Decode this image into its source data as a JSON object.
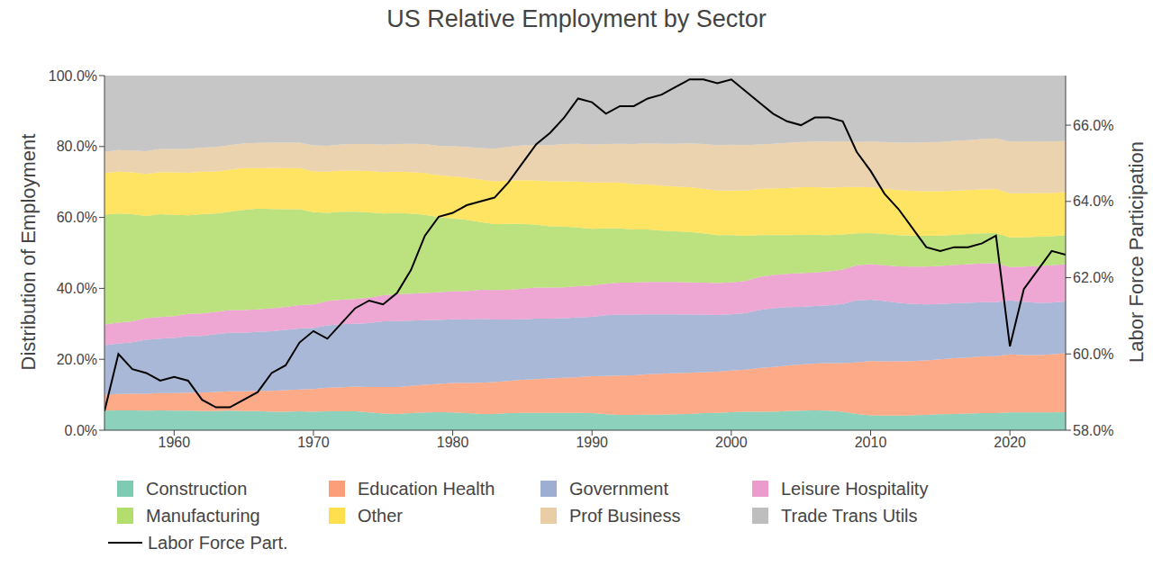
{
  "chart_data": {
    "type": "area",
    "title": "US Relative Employment by Sector",
    "ylabel": "Distribution of Employment",
    "y2label": "Labor Force Participation",
    "stacked": true,
    "grid": false,
    "legend": "bottom",
    "x": [
      1955,
      1956,
      1957,
      1958,
      1959,
      1960,
      1961,
      1962,
      1963,
      1964,
      1965,
      1966,
      1967,
      1968,
      1969,
      1970,
      1971,
      1972,
      1973,
      1974,
      1975,
      1976,
      1977,
      1978,
      1979,
      1980,
      1981,
      1982,
      1983,
      1984,
      1985,
      1986,
      1987,
      1988,
      1989,
      1990,
      1991,
      1992,
      1993,
      1994,
      1995,
      1996,
      1997,
      1998,
      1999,
      2000,
      2001,
      2002,
      2003,
      2004,
      2005,
      2006,
      2007,
      2008,
      2009,
      2010,
      2011,
      2012,
      2013,
      2014,
      2015,
      2016,
      2017,
      2018,
      2019,
      2020,
      2021,
      2022,
      2023,
      2024
    ],
    "xlim": [
      1955,
      2024
    ],
    "xticks": [
      1960,
      1970,
      1980,
      1990,
      2000,
      2010,
      2020
    ],
    "ylim": [
      0,
      100
    ],
    "yticks": [
      {
        "value": 0,
        "label": "0.0%"
      },
      {
        "value": 20,
        "label": "20.0%"
      },
      {
        "value": 40,
        "label": "40.0%"
      },
      {
        "value": 60,
        "label": "60.0%"
      },
      {
        "value": 80,
        "label": "80.0%"
      },
      {
        "value": 100,
        "label": "100.0%"
      }
    ],
    "y2lim": [
      58,
      67.3
    ],
    "y2ticks": [
      {
        "value": 58,
        "label": "58.0%"
      },
      {
        "value": 60,
        "label": "60.0%"
      },
      {
        "value": 62,
        "label": "62.0%"
      },
      {
        "value": 64,
        "label": "64.0%"
      },
      {
        "value": 66,
        "label": "66.0%"
      }
    ],
    "series": [
      {
        "name": "Construction",
        "color": "#66c2a5",
        "values": [
          5.5,
          5.6,
          5.6,
          5.5,
          5.6,
          5.5,
          5.5,
          5.4,
          5.4,
          5.5,
          5.4,
          5.4,
          5.2,
          5.2,
          5.3,
          5.2,
          5.3,
          5.3,
          5.3,
          5.0,
          4.7,
          4.6,
          4.8,
          5.0,
          5.1,
          5.0,
          4.8,
          4.6,
          4.6,
          4.8,
          4.9,
          4.9,
          4.9,
          4.9,
          4.9,
          4.8,
          4.5,
          4.3,
          4.3,
          4.4,
          4.4,
          4.5,
          4.6,
          4.8,
          4.9,
          5.1,
          5.2,
          5.2,
          5.2,
          5.4,
          5.5,
          5.6,
          5.5,
          5.2,
          4.6,
          4.2,
          4.1,
          4.1,
          4.2,
          4.3,
          4.5,
          4.6,
          4.7,
          4.8,
          4.8,
          5.0,
          5.0,
          5.0,
          5.0,
          5.1
        ]
      },
      {
        "name": "Education Health",
        "color": "#fc8d62",
        "values": [
          4.5,
          4.6,
          4.7,
          4.8,
          4.9,
          5.0,
          5.1,
          5.2,
          5.4,
          5.5,
          5.6,
          5.7,
          5.9,
          6.1,
          6.2,
          6.4,
          6.7,
          6.8,
          7.0,
          7.2,
          7.5,
          7.6,
          7.7,
          7.8,
          8.0,
          8.3,
          8.5,
          8.8,
          9.0,
          9.1,
          9.3,
          9.5,
          9.7,
          9.9,
          10.1,
          10.4,
          10.8,
          11.1,
          11.2,
          11.4,
          11.5,
          11.6,
          11.6,
          11.6,
          11.6,
          11.7,
          11.9,
          12.3,
          12.6,
          12.8,
          13.0,
          13.2,
          13.4,
          13.7,
          14.5,
          15.3,
          15.3,
          15.3,
          15.3,
          15.4,
          15.5,
          15.7,
          15.8,
          16.0,
          16.1,
          16.4,
          16.2,
          16.2,
          16.4,
          16.6
        ]
      },
      {
        "name": "Government",
        "color": "#8da0cb",
        "values": [
          14.0,
          14.2,
          14.5,
          15.2,
          15.3,
          15.5,
          15.9,
          16.0,
          16.3,
          16.5,
          16.5,
          16.6,
          16.8,
          17.0,
          17.2,
          17.2,
          17.6,
          17.8,
          17.7,
          18.0,
          18.5,
          18.6,
          18.4,
          18.2,
          18.0,
          18.0,
          17.9,
          18.0,
          17.6,
          17.3,
          17.1,
          17.1,
          16.9,
          16.8,
          16.8,
          16.8,
          17.1,
          17.2,
          17.1,
          16.9,
          16.8,
          16.6,
          16.4,
          16.2,
          16.0,
          15.9,
          15.9,
          16.4,
          16.6,
          16.5,
          16.3,
          16.2,
          16.3,
          16.7,
          17.5,
          17.3,
          17.0,
          16.5,
          16.1,
          15.8,
          15.6,
          15.5,
          15.4,
          15.3,
          15.2,
          15.2,
          15.0,
          14.7,
          14.6,
          14.6
        ]
      },
      {
        "name": "Leisure Hospitality",
        "color": "#e78ac3",
        "values": [
          5.8,
          5.9,
          5.9,
          6.1,
          6.1,
          6.2,
          6.3,
          6.3,
          6.3,
          6.4,
          6.4,
          6.4,
          6.5,
          6.5,
          6.6,
          6.7,
          6.8,
          6.9,
          7.0,
          7.2,
          7.4,
          7.5,
          7.6,
          7.7,
          7.8,
          7.9,
          8.0,
          8.2,
          8.3,
          8.4,
          8.6,
          8.7,
          8.7,
          8.7,
          8.8,
          8.8,
          8.9,
          9.0,
          9.0,
          9.1,
          9.1,
          9.1,
          9.1,
          9.0,
          9.0,
          9.0,
          9.1,
          9.3,
          9.4,
          9.4,
          9.5,
          9.5,
          9.6,
          9.7,
          9.9,
          10.0,
          10.1,
          10.3,
          10.5,
          10.6,
          10.7,
          10.8,
          10.9,
          10.9,
          11.0,
          9.4,
          9.9,
          10.4,
          10.5,
          10.5
        ]
      },
      {
        "name": "Manufacturing",
        "color": "#a6d854",
        "values": [
          31.0,
          30.8,
          30.2,
          28.8,
          29.0,
          28.5,
          27.8,
          28.0,
          27.7,
          27.7,
          28.2,
          28.4,
          28.0,
          27.5,
          27.0,
          26.0,
          24.9,
          24.8,
          24.6,
          24.0,
          23.0,
          22.9,
          22.6,
          22.0,
          21.2,
          20.5,
          20.1,
          19.1,
          18.6,
          18.6,
          18.3,
          17.7,
          17.3,
          17.1,
          16.6,
          16.0,
          15.6,
          15.3,
          15.0,
          14.8,
          14.5,
          14.3,
          14.2,
          13.9,
          13.5,
          13.3,
          12.7,
          11.8,
          11.2,
          10.9,
          10.8,
          10.6,
          10.2,
          9.9,
          9.0,
          8.8,
          8.8,
          8.8,
          8.8,
          8.7,
          8.6,
          8.5,
          8.5,
          8.5,
          8.5,
          8.4,
          8.3,
          8.3,
          8.2,
          8.2
        ]
      },
      {
        "name": "Other",
        "color": "#ffd92f",
        "values": [
          11.7,
          11.8,
          11.8,
          11.9,
          11.9,
          12.0,
          12.0,
          12.0,
          11.9,
          11.9,
          11.8,
          11.4,
          11.6,
          11.6,
          11.6,
          11.5,
          11.6,
          11.6,
          11.6,
          11.7,
          11.7,
          11.7,
          11.7,
          11.8,
          11.8,
          11.9,
          11.9,
          12.0,
          12.1,
          12.2,
          12.3,
          12.5,
          12.7,
          12.8,
          12.9,
          13.0,
          13.0,
          12.9,
          12.8,
          12.7,
          12.7,
          12.6,
          12.6,
          12.6,
          12.6,
          12.6,
          12.8,
          13.0,
          13.2,
          13.3,
          13.4,
          13.4,
          13.4,
          13.3,
          13.1,
          12.9,
          12.8,
          12.7,
          12.6,
          12.6,
          12.5,
          12.5,
          12.4,
          12.4,
          12.4,
          12.4,
          12.4,
          12.3,
          12.2,
          12.2
        ]
      },
      {
        "name": "Prof Business",
        "color": "#e5c494",
        "values": [
          6.0,
          6.1,
          6.2,
          6.4,
          6.5,
          6.6,
          6.7,
          6.8,
          6.9,
          6.9,
          7.0,
          7.1,
          7.1,
          7.2,
          7.2,
          7.3,
          7.3,
          7.4,
          7.5,
          7.6,
          7.7,
          7.8,
          8.0,
          8.2,
          8.3,
          8.5,
          8.7,
          8.9,
          9.2,
          9.5,
          9.8,
          10.0,
          10.2,
          10.5,
          10.7,
          10.8,
          10.8,
          11.0,
          11.3,
          11.6,
          11.8,
          12.1,
          12.4,
          12.6,
          12.8,
          12.9,
          12.8,
          12.6,
          12.6,
          12.7,
          12.8,
          12.9,
          13.0,
          13.0,
          12.7,
          12.9,
          13.2,
          13.4,
          13.6,
          13.8,
          13.9,
          14.0,
          14.1,
          14.2,
          14.3,
          14.6,
          14.7,
          14.6,
          14.5,
          14.4
        ]
      },
      {
        "name": "Trade Trans Utils",
        "color": "#b3b3b3",
        "values": [
          21.5,
          21.0,
          21.1,
          21.3,
          20.7,
          20.7,
          20.7,
          20.3,
          20.1,
          19.6,
          19.1,
          19.0,
          18.9,
          18.9,
          18.9,
          19.7,
          19.8,
          19.4,
          19.3,
          19.3,
          19.5,
          19.3,
          19.2,
          19.3,
          19.8,
          19.9,
          20.1,
          20.4,
          20.6,
          20.1,
          19.7,
          19.6,
          19.6,
          19.3,
          19.2,
          19.4,
          19.3,
          19.2,
          19.3,
          19.1,
          19.2,
          19.2,
          19.1,
          19.3,
          19.6,
          19.5,
          19.6,
          19.4,
          19.2,
          19.0,
          18.7,
          18.6,
          18.6,
          18.5,
          18.7,
          18.6,
          18.7,
          18.9,
          18.9,
          18.8,
          18.7,
          18.4,
          18.2,
          17.9,
          17.7,
          18.6,
          18.5,
          18.5,
          18.6,
          18.4
        ]
      },
      {
        "name": "Labor Force Part.",
        "color": "#000000",
        "type": "line",
        "axis": "y2",
        "values": [
          58.5,
          60.0,
          59.6,
          59.5,
          59.3,
          59.4,
          59.3,
          58.8,
          58.6,
          58.6,
          58.8,
          59.0,
          59.5,
          59.7,
          60.3,
          60.6,
          60.4,
          60.8,
          61.2,
          61.4,
          61.3,
          61.6,
          62.2,
          63.1,
          63.6,
          63.7,
          63.9,
          64.0,
          64.1,
          64.5,
          65.0,
          65.5,
          65.8,
          66.2,
          66.7,
          66.6,
          66.3,
          66.5,
          66.5,
          66.7,
          66.8,
          67.0,
          67.2,
          67.2,
          67.1,
          67.2,
          66.9,
          66.6,
          66.3,
          66.1,
          66.0,
          66.2,
          66.2,
          66.1,
          65.3,
          64.8,
          64.2,
          63.8,
          63.3,
          62.8,
          62.7,
          62.8,
          62.8,
          62.9,
          63.1,
          60.2,
          61.7,
          62.2,
          62.7,
          62.6
        ]
      }
    ]
  }
}
